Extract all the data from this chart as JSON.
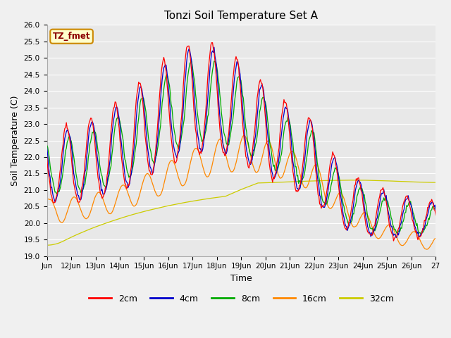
{
  "title": "Tonzi Soil Temperature Set A",
  "xlabel": "Time",
  "ylabel": "Soil Temperature (C)",
  "ylim": [
    19.0,
    26.0
  ],
  "yticks": [
    19.0,
    19.5,
    20.0,
    20.5,
    21.0,
    21.5,
    22.0,
    22.5,
    23.0,
    23.5,
    24.0,
    24.5,
    25.0,
    25.5,
    26.0
  ],
  "xtick_labels": [
    "Jun",
    "12Jun",
    "13Jun",
    "14Jun",
    "15Jun",
    "16Jun",
    "17Jun",
    "18Jun",
    "19Jun",
    "20Jun",
    "21Jun",
    "22Jun",
    "23Jun",
    "24Jun",
    "25Jun",
    "26Jun",
    "27"
  ],
  "colors": {
    "2cm": "#ff0000",
    "4cm": "#0000cc",
    "8cm": "#00aa00",
    "16cm": "#ff8800",
    "32cm": "#cccc00"
  },
  "legend_label": "TZ_fmet",
  "fig_facecolor": "#f0f0f0",
  "ax_facecolor": "#e8e8e8",
  "grid_color": "#ffffff"
}
